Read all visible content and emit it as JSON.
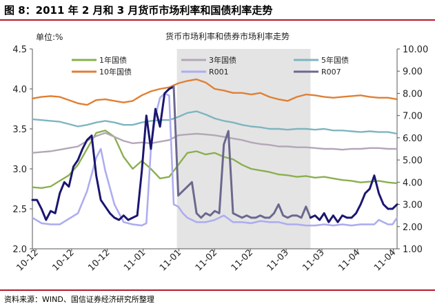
{
  "figure": {
    "title": "图 8：2011 年 2 月和 3 月货币市场利率和国债利率走势",
    "source": "资料来源：WIND、国信证券经济研究所整理"
  },
  "colors": {
    "header_rule": "#b3182a",
    "shade": "#e4e4e4",
    "y1": "#8aaf4e",
    "y10": "#e07f33",
    "y3": "#b4a6b8",
    "y5": "#7db5c0",
    "r001": "#adadf0",
    "r007": "#1a1670",
    "r007_late": "#6b688e"
  },
  "chart_data": {
    "type": "line",
    "title": "货币市场利率和债券市场利率走势",
    "unit_label": "单位:%",
    "left_ylim": [
      2.0,
      4.5
    ],
    "right_ylim": [
      1.0,
      10.0
    ],
    "left_yticks": [
      "2.0",
      "2.5",
      "3.0",
      "3.5",
      "4.0",
      "4.5"
    ],
    "right_yticks": [
      "1.00",
      "2.00",
      "3.00",
      "4.00",
      "5.00",
      "6.00",
      "7.00",
      "8.00",
      "9.00",
      "10.00"
    ],
    "xlim": [
      0,
      80
    ],
    "xticks": [
      {
        "x": 0,
        "label": "10-12"
      },
      {
        "x": 9,
        "label": "10-12"
      },
      {
        "x": 18,
        "label": "10-12"
      },
      {
        "x": 27,
        "label": "11-01"
      },
      {
        "x": 36,
        "label": "11-01"
      },
      {
        "x": 45,
        "label": "11-02"
      },
      {
        "x": 54,
        "label": "11-02"
      },
      {
        "x": 63,
        "label": "11-03"
      },
      {
        "x": 72,
        "label": "11-03"
      },
      {
        "x": 81,
        "label": "11-04"
      },
      {
        "x": 90,
        "label": "11-04"
      }
    ],
    "shaded_x": [
      31.7,
      61.0
    ],
    "legend_placement": "top, inside plot",
    "series": [
      {
        "key": "y1",
        "name": "1年国债",
        "axis": "left",
        "x": [
          0,
          2,
          4,
          6,
          8,
          10,
          12,
          14,
          16,
          18,
          20,
          22,
          24,
          26,
          28,
          30,
          32,
          34,
          36,
          38,
          40,
          42,
          44,
          46,
          48,
          50,
          52,
          54,
          56,
          58,
          60,
          62,
          64,
          66,
          68,
          70,
          72,
          74,
          76,
          78,
          80
        ],
        "values": [
          2.77,
          2.76,
          2.78,
          2.85,
          2.92,
          3.05,
          3.25,
          3.45,
          3.48,
          3.4,
          3.15,
          3.0,
          3.1,
          3.0,
          2.88,
          2.9,
          3.05,
          3.2,
          3.22,
          3.18,
          3.2,
          3.15,
          3.12,
          3.05,
          3.0,
          2.98,
          2.96,
          2.93,
          2.92,
          2.9,
          2.91,
          2.89,
          2.9,
          2.88,
          2.86,
          2.85,
          2.83,
          2.84,
          2.85,
          2.83,
          2.82
        ]
      },
      {
        "key": "y10",
        "name": "10年国债",
        "axis": "left",
        "x": [
          0,
          2,
          4,
          6,
          8,
          10,
          12,
          14,
          16,
          18,
          20,
          22,
          24,
          26,
          28,
          30,
          32,
          34,
          36,
          38,
          40,
          42,
          44,
          46,
          48,
          50,
          52,
          54,
          56,
          58,
          60,
          62,
          64,
          66,
          68,
          70,
          72,
          74,
          76,
          78,
          80
        ],
        "values": [
          3.88,
          3.9,
          3.91,
          3.9,
          3.86,
          3.82,
          3.8,
          3.86,
          3.87,
          3.85,
          3.83,
          3.85,
          3.92,
          3.97,
          4.0,
          4.02,
          4.07,
          4.1,
          4.12,
          4.08,
          4.0,
          3.98,
          3.95,
          3.95,
          3.93,
          3.95,
          3.9,
          3.87,
          3.85,
          3.9,
          3.93,
          3.92,
          3.9,
          3.89,
          3.9,
          3.91,
          3.92,
          3.9,
          3.89,
          3.89,
          3.87
        ]
      },
      {
        "key": "y3",
        "name": "3年国债",
        "axis": "left",
        "x": [
          0,
          2,
          4,
          6,
          8,
          10,
          12,
          14,
          16,
          18,
          20,
          22,
          24,
          26,
          28,
          30,
          32,
          34,
          36,
          38,
          40,
          42,
          44,
          46,
          48,
          50,
          52,
          54,
          56,
          58,
          60,
          62,
          64,
          66,
          68,
          70,
          72,
          74,
          76,
          78,
          80
        ],
        "values": [
          3.2,
          3.21,
          3.22,
          3.24,
          3.26,
          3.28,
          3.35,
          3.41,
          3.45,
          3.4,
          3.35,
          3.32,
          3.33,
          3.32,
          3.34,
          3.36,
          3.42,
          3.43,
          3.44,
          3.43,
          3.42,
          3.4,
          3.38,
          3.36,
          3.33,
          3.31,
          3.3,
          3.28,
          3.28,
          3.27,
          3.27,
          3.26,
          3.25,
          3.25,
          3.24,
          3.25,
          3.25,
          3.26,
          3.26,
          3.25,
          3.25
        ]
      },
      {
        "key": "y5",
        "name": "5年国债",
        "axis": "left",
        "x": [
          0,
          2,
          4,
          6,
          8,
          10,
          12,
          14,
          16,
          18,
          20,
          22,
          24,
          26,
          28,
          30,
          32,
          34,
          36,
          38,
          40,
          42,
          44,
          46,
          48,
          50,
          52,
          54,
          56,
          58,
          60,
          62,
          64,
          66,
          68,
          70,
          72,
          74,
          76,
          78,
          80
        ],
        "values": [
          3.62,
          3.61,
          3.6,
          3.59,
          3.56,
          3.53,
          3.55,
          3.58,
          3.6,
          3.58,
          3.55,
          3.55,
          3.58,
          3.6,
          3.61,
          3.61,
          3.65,
          3.7,
          3.72,
          3.68,
          3.63,
          3.6,
          3.58,
          3.55,
          3.53,
          3.52,
          3.5,
          3.5,
          3.49,
          3.5,
          3.5,
          3.49,
          3.5,
          3.48,
          3.48,
          3.47,
          3.46,
          3.47,
          3.46,
          3.46,
          3.44
        ]
      },
      {
        "key": "r001",
        "name": "R001",
        "axis": "right",
        "x": [
          0,
          2,
          4,
          6,
          8,
          10,
          12,
          14,
          15,
          16,
          18,
          20,
          22,
          24,
          25,
          26,
          27,
          28,
          29,
          30,
          31,
          32,
          33,
          34,
          36,
          38,
          40,
          42,
          44,
          46,
          48,
          50,
          52,
          54,
          56,
          58,
          60,
          62,
          64,
          66,
          68,
          70,
          72,
          74,
          75,
          76,
          78,
          79,
          80
        ],
        "values": [
          2.4,
          2.15,
          2.1,
          2.1,
          2.35,
          2.6,
          3.6,
          5.1,
          5.5,
          4.5,
          3.0,
          2.2,
          2.1,
          2.05,
          2.15,
          5.5,
          7.0,
          7.8,
          8.0,
          7.9,
          3.0,
          2.9,
          2.6,
          2.4,
          2.2,
          2.2,
          2.3,
          2.5,
          2.2,
          2.2,
          2.15,
          2.25,
          2.2,
          2.2,
          2.1,
          2.1,
          2.05,
          2.05,
          2.1,
          2.05,
          2.1,
          2.05,
          2.1,
          2.1,
          2.1,
          2.3,
          2.1,
          2.1,
          2.4
        ]
      },
      {
        "key": "r007",
        "name": "R007",
        "axis": "right",
        "x": [
          0,
          1,
          2,
          3,
          4,
          5,
          6,
          7,
          8,
          9,
          10,
          11,
          12,
          13,
          14,
          15,
          16,
          17,
          18,
          19,
          20,
          21,
          22,
          23,
          24,
          25,
          26,
          27,
          28,
          29,
          30,
          31
        ],
        "values": [
          3.2,
          3.2,
          2.8,
          2.3,
          2.7,
          2.6,
          3.5,
          4.0,
          3.8,
          4.7,
          5.0,
          5.5,
          5.9,
          6.1,
          4.3,
          3.2,
          2.9,
          2.6,
          2.4,
          2.3,
          2.5,
          2.3,
          2.4,
          2.5,
          4.5,
          7.0,
          5.5,
          7.3,
          6.5,
          8.0,
          8.2,
          8.3
        ]
      },
      {
        "key": "r007_late",
        "name": "",
        "axis": "right",
        "x": [
          31,
          32,
          33,
          34,
          35,
          36,
          37,
          38,
          39,
          40,
          41,
          42,
          43,
          44,
          45,
          46,
          47,
          48,
          49,
          50,
          51,
          52,
          53,
          54,
          55,
          56,
          57,
          58,
          59,
          60,
          61
        ],
        "values": [
          8.3,
          3.4,
          3.6,
          3.8,
          4.0,
          2.6,
          2.4,
          2.6,
          2.5,
          2.7,
          2.6,
          5.7,
          6.3,
          2.6,
          2.5,
          2.4,
          2.5,
          2.4,
          2.4,
          2.5,
          2.4,
          2.4,
          2.6,
          3.0,
          2.5,
          2.4,
          2.5,
          2.5,
          2.4,
          2.9,
          2.4
        ]
      },
      {
        "key": "r007_tail",
        "name": "",
        "axis": "right",
        "color_key": "r007",
        "x": [
          61,
          62,
          63,
          64,
          65,
          66,
          67,
          68,
          69,
          70,
          71,
          72,
          73,
          74,
          75,
          76,
          77,
          78,
          79,
          80
        ],
        "values": [
          2.4,
          2.5,
          2.3,
          2.6,
          2.2,
          2.5,
          2.2,
          2.5,
          2.4,
          2.4,
          2.6,
          3.0,
          3.5,
          3.7,
          4.3,
          3.5,
          3.0,
          2.8,
          2.8,
          3.0
        ]
      }
    ],
    "legend": [
      {
        "key": "y1",
        "label": "1年国债",
        "color_key": "y1"
      },
      {
        "key": "y3",
        "label": "3年国债",
        "color_key": "y3"
      },
      {
        "key": "y5",
        "label": "5年国债",
        "color_key": "y5"
      },
      {
        "key": "y10",
        "label": "10年国债",
        "color_key": "y10"
      },
      {
        "key": "r001",
        "label": "R001",
        "color_key": "r001"
      },
      {
        "key": "r007",
        "label": "R007",
        "color_key": "r007_late"
      }
    ]
  }
}
